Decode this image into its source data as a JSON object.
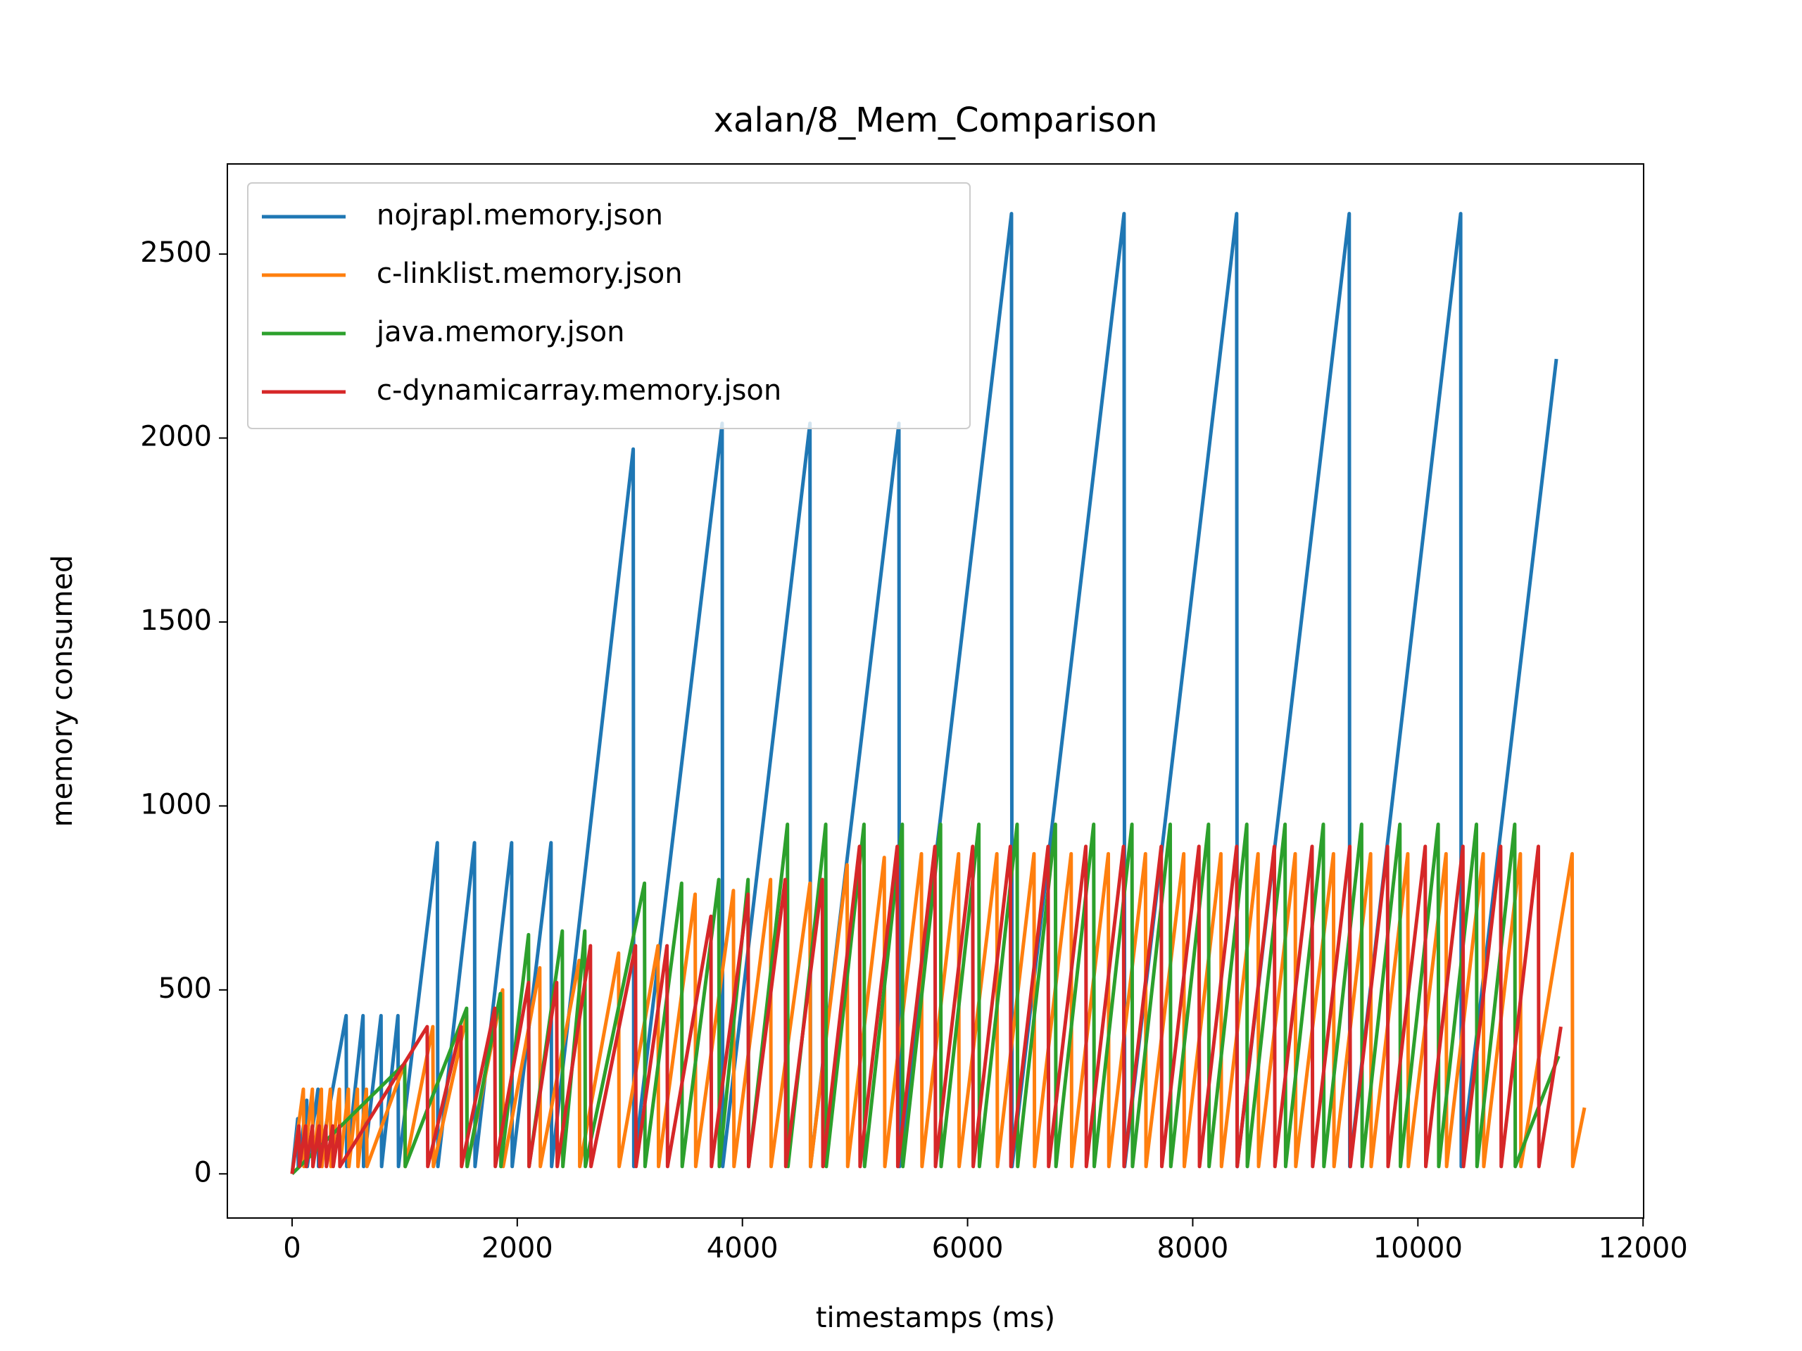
{
  "chart_data": {
    "type": "line",
    "title": "xalan/8_Mem_Comparison",
    "x_label": "timestamps (ms)",
    "y_label": "memory consumed",
    "xlim": [
      -575,
      12005
    ],
    "ylim": [
      -120,
      2745
    ],
    "xticks": [
      0,
      2000,
      4000,
      6000,
      8000,
      10000,
      12000
    ],
    "yticks": [
      0,
      500,
      1000,
      1500,
      2000,
      2500
    ],
    "grid": false,
    "legend": "upper left",
    "series": [
      {
        "name": "nojrapl.memory.json",
        "color": "#1f77b4",
        "x": [
          0,
          50,
          55,
          130,
          135,
          230,
          235,
          480,
          485,
          630,
          635,
          790,
          795,
          940,
          945,
          1290,
          1295,
          1620,
          1625,
          1950,
          1955,
          2300,
          2305,
          3030,
          3035,
          3820,
          3825,
          4600,
          4605,
          5390,
          5395,
          6390,
          6395,
          7390,
          7395,
          8390,
          8395,
          9390,
          9395,
          10380,
          10385,
          11230
        ],
        "values": [
          0,
          150,
          20,
          200,
          20,
          230,
          20,
          430,
          20,
          430,
          20,
          430,
          20,
          430,
          20,
          900,
          20,
          900,
          20,
          900,
          20,
          900,
          20,
          1970,
          20,
          2040,
          20,
          2040,
          20,
          2040,
          20,
          2610,
          20,
          2610,
          20,
          2610,
          20,
          2610,
          20,
          2610,
          20,
          2215
        ]
      },
      {
        "name": "c-linklist.memory.json",
        "color": "#ff7f0e",
        "x": [
          0,
          100,
          105,
          180,
          185,
          260,
          265,
          340,
          345,
          420,
          425,
          500,
          505,
          580,
          585,
          660,
          665,
          1000,
          1005,
          1250,
          1255,
          1550,
          1555,
          1870,
          1875,
          2200,
          2205,
          2550,
          2555,
          2900,
          2905,
          3250,
          3255,
          3580,
          3585,
          3920,
          3925,
          4250,
          4255,
          4600,
          4605,
          4930,
          4935,
          5260,
          5265,
          5590,
          5595,
          5920,
          5925,
          6260,
          6265,
          6590,
          6595,
          6920,
          6925,
          7250,
          7255,
          7580,
          7585,
          7920,
          7925,
          8250,
          8255,
          8580,
          8585,
          8910,
          8915,
          9250,
          9255,
          9580,
          9585,
          9910,
          9915,
          10250,
          10255,
          10580,
          10585,
          10910,
          10915,
          11370,
          11375,
          11480
        ],
        "values": [
          0,
          230,
          20,
          230,
          20,
          230,
          20,
          230,
          20,
          230,
          20,
          230,
          20,
          230,
          20,
          230,
          20,
          300,
          20,
          400,
          20,
          430,
          20,
          500,
          20,
          560,
          20,
          580,
          20,
          600,
          20,
          620,
          20,
          760,
          20,
          770,
          20,
          800,
          20,
          790,
          20,
          840,
          20,
          860,
          20,
          870,
          20,
          870,
          20,
          870,
          20,
          870,
          20,
          870,
          20,
          870,
          20,
          870,
          20,
          870,
          20,
          870,
          20,
          870,
          20,
          870,
          20,
          870,
          20,
          870,
          20,
          870,
          20,
          870,
          20,
          870,
          20,
          870,
          20,
          870,
          20,
          180
        ]
      },
      {
        "name": "java.memory.json",
        "color": "#2ca02c",
        "x": [
          0,
          1000,
          1005,
          1550,
          1555,
          1850,
          1855,
          2100,
          2105,
          2400,
          2405,
          2600,
          2605,
          3130,
          3135,
          3460,
          3465,
          3790,
          3795,
          4050,
          4055,
          4400,
          4405,
          4740,
          4745,
          5080,
          5085,
          5420,
          5425,
          5760,
          5765,
          6100,
          6105,
          6440,
          6445,
          6780,
          6785,
          7120,
          7125,
          7460,
          7465,
          7800,
          7805,
          8140,
          8145,
          8480,
          8485,
          8820,
          8825,
          9160,
          9165,
          9500,
          9505,
          9840,
          9845,
          10180,
          10185,
          10520,
          10525,
          10860,
          10865,
          11250
        ],
        "values": [
          0,
          300,
          20,
          450,
          20,
          490,
          20,
          650,
          20,
          660,
          20,
          660,
          20,
          790,
          20,
          790,
          20,
          800,
          20,
          800,
          20,
          950,
          20,
          950,
          20,
          950,
          20,
          950,
          20,
          950,
          20,
          950,
          20,
          950,
          20,
          950,
          20,
          950,
          20,
          950,
          20,
          950,
          20,
          950,
          20,
          950,
          20,
          950,
          20,
          950,
          20,
          950,
          20,
          950,
          20,
          950,
          20,
          950,
          20,
          950,
          20,
          320
        ]
      },
      {
        "name": "c-dynamicarray.memory.json",
        "color": "#d62728",
        "x": [
          0,
          60,
          65,
          120,
          125,
          180,
          185,
          240,
          245,
          300,
          305,
          360,
          365,
          420,
          425,
          1200,
          1205,
          1500,
          1505,
          1800,
          1805,
          2100,
          2105,
          2350,
          2355,
          2650,
          2655,
          3050,
          3055,
          3330,
          3335,
          3720,
          3725,
          4050,
          4055,
          4380,
          4385,
          4710,
          4715,
          5040,
          5045,
          5375,
          5380,
          5710,
          5715,
          6045,
          6050,
          6380,
          6385,
          6715,
          6720,
          7050,
          7055,
          7385,
          7390,
          7720,
          7725,
          8055,
          8060,
          8390,
          8395,
          8725,
          8730,
          9060,
          9065,
          9395,
          9400,
          9730,
          9735,
          10065,
          10070,
          10400,
          10405,
          10735,
          10740,
          11070,
          11075,
          11270
        ],
        "values": [
          0,
          130,
          20,
          130,
          20,
          130,
          20,
          130,
          20,
          130,
          20,
          130,
          20,
          130,
          20,
          400,
          20,
          400,
          20,
          450,
          20,
          520,
          20,
          520,
          20,
          620,
          20,
          620,
          20,
          620,
          20,
          700,
          20,
          760,
          20,
          800,
          20,
          800,
          20,
          890,
          20,
          890,
          20,
          890,
          20,
          890,
          20,
          890,
          20,
          890,
          20,
          890,
          20,
          890,
          20,
          890,
          20,
          890,
          20,
          890,
          20,
          890,
          20,
          890,
          20,
          890,
          20,
          890,
          20,
          890,
          20,
          890,
          20,
          890,
          20,
          890,
          20,
          400
        ]
      }
    ]
  }
}
